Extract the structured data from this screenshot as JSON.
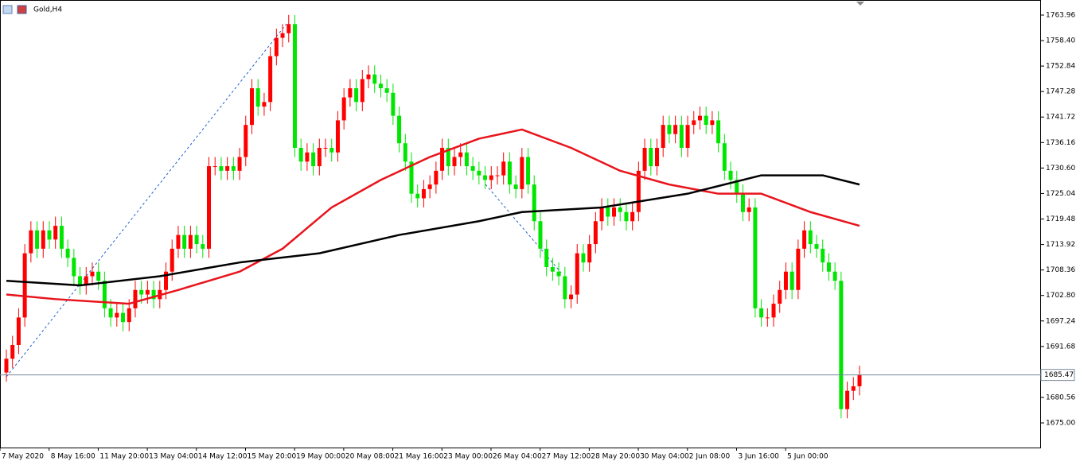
{
  "chart_data": {
    "type": "candlestick",
    "title": "Gold,H4",
    "open": [
      1686,
      1689,
      1692,
      1698,
      1712,
      1717,
      1713,
      1717,
      1715,
      1718,
      1713,
      1711,
      1707,
      1705,
      1707,
      1708,
      1706,
      1700,
      1698,
      1699,
      1697,
      1700,
      1704,
      1703,
      1704,
      1702,
      1704,
      1708,
      1713,
      1716,
      1713,
      1716,
      1714,
      1713,
      1731,
      1731,
      1730,
      1731,
      1730,
      1733,
      1740,
      1748,
      1744,
      1745,
      1755,
      1759,
      1760,
      1762,
      1735,
      1732,
      1734,
      1731,
      1735,
      1735,
      1734,
      1741,
      1746,
      1748,
      1745,
      1750,
      1751,
      1749,
      1748,
      1747,
      1742,
      1736,
      1732,
      1725,
      1724,
      1726,
      1727,
      1730,
      1735,
      1731,
      1733,
      1734,
      1731,
      1730,
      1729,
      1728,
      1729,
      1729,
      1732,
      1727,
      1726,
      1733,
      1727,
      1719,
      1713,
      1709,
      1708,
      1707,
      1702,
      1703,
      1712,
      1710,
      1714,
      1719,
      1722,
      1720,
      1722,
      1721,
      1719,
      1721,
      1730,
      1735,
      1731,
      1735,
      1740,
      1738,
      1740,
      1735,
      1740,
      1741,
      1742,
      1740,
      1741,
      1736,
      1730,
      1728,
      1725,
      1721,
      1722,
      1700,
      1698,
      1698,
      1701,
      1704,
      1708,
      1704,
      1713,
      1717,
      1714,
      1713,
      1710,
      1708,
      1706,
      1678,
      1682,
      1683
    ],
    "high": [
      1691,
      1694,
      1700,
      1714,
      1719,
      1719,
      1719,
      1719,
      1720,
      1720,
      1715,
      1713,
      1709,
      1709,
      1710,
      1710,
      1708,
      1702,
      1701,
      1701,
      1702,
      1706,
      1706,
      1706,
      1706,
      1706,
      1710,
      1715,
      1718,
      1718,
      1718,
      1718,
      1716,
      1733,
      1733,
      1733,
      1733,
      1733,
      1735,
      1742,
      1750,
      1750,
      1747,
      1757,
      1761,
      1762,
      1764,
      1764,
      1737,
      1736,
      1736,
      1737,
      1737,
      1737,
      1743,
      1748,
      1750,
      1750,
      1752,
      1753,
      1753,
      1751,
      1750,
      1749,
      1744,
      1738,
      1734,
      1727,
      1728,
      1729,
      1732,
      1737,
      1737,
      1735,
      1736,
      1736,
      1733,
      1732,
      1731,
      1731,
      1731,
      1734,
      1734,
      1729,
      1735,
      1735,
      1729,
      1721,
      1715,
      1711,
      1710,
      1709,
      1705,
      1714,
      1714,
      1716,
      1721,
      1724,
      1724,
      1724,
      1724,
      1723,
      1723,
      1732,
      1737,
      1737,
      1737,
      1742,
      1742,
      1742,
      1742,
      1742,
      1743,
      1744,
      1744,
      1743,
      1743,
      1738,
      1732,
      1730,
      1727,
      1724,
      1724,
      1702,
      1700,
      1703,
      1706,
      1710,
      1710,
      1715,
      1719,
      1719,
      1716,
      1715,
      1712,
      1710,
      1708,
      1684,
      1685,
      1687.5
    ],
    "low": [
      1684,
      1687,
      1690,
      1696,
      1710,
      1711,
      1711,
      1713,
      1713,
      1711,
      1709,
      1705,
      1703,
      1703,
      1705,
      1704,
      1698,
      1696,
      1696,
      1695,
      1695,
      1698,
      1701,
      1701,
      1700,
      1700,
      1702,
      1706,
      1711,
      1711,
      1711,
      1712,
      1711,
      1711,
      1729,
      1728,
      1728,
      1728,
      1728,
      1731,
      1738,
      1742,
      1742,
      1743,
      1753,
      1757,
      1758,
      1733,
      1730,
      1730,
      1729,
      1729,
      1733,
      1732,
      1732,
      1739,
      1744,
      1743,
      1743,
      1748,
      1747,
      1746,
      1745,
      1740,
      1734,
      1730,
      1723,
      1722,
      1722,
      1724,
      1725,
      1728,
      1729,
      1729,
      1731,
      1729,
      1728,
      1727,
      1726,
      1726,
      1727,
      1727,
      1725,
      1724,
      1724,
      1725,
      1717,
      1711,
      1707,
      1706,
      1705,
      1700,
      1700,
      1701,
      1708,
      1708,
      1712,
      1717,
      1718,
      1718,
      1719,
      1717,
      1717,
      1719,
      1728,
      1729,
      1729,
      1733,
      1736,
      1736,
      1733,
      1733,
      1738,
      1739,
      1738,
      1738,
      1734,
      1728,
      1726,
      1723,
      1719,
      1719,
      1698,
      1696,
      1696,
      1696,
      1699,
      1702,
      1702,
      1702,
      1711,
      1712,
      1711,
      1708,
      1706,
      1704,
      1676,
      1676,
      1680,
      1681
    ],
    "close": [
      1689,
      1692,
      1698,
      1712,
      1717,
      1713,
      1717,
      1715,
      1718,
      1713,
      1711,
      1707,
      1705,
      1707,
      1708,
      1706,
      1700,
      1698,
      1699,
      1697,
      1700,
      1704,
      1703,
      1704,
      1702,
      1704,
      1708,
      1713,
      1716,
      1713,
      1716,
      1714,
      1713,
      1731,
      1731,
      1730,
      1731,
      1730,
      1733,
      1740,
      1748,
      1744,
      1745,
      1755,
      1759,
      1760,
      1762,
      1735,
      1732,
      1734,
      1731,
      1735,
      1735,
      1734,
      1741,
      1746,
      1748,
      1745,
      1750,
      1751,
      1749,
      1748,
      1747,
      1742,
      1736,
      1732,
      1725,
      1724,
      1726,
      1727,
      1730,
      1735,
      1731,
      1733,
      1734,
      1731,
      1730,
      1729,
      1728,
      1729,
      1729,
      1732,
      1727,
      1726,
      1733,
      1727,
      1719,
      1713,
      1709,
      1708,
      1707,
      1702,
      1703,
      1712,
      1710,
      1714,
      1719,
      1722,
      1720,
      1722,
      1721,
      1719,
      1721,
      1730,
      1735,
      1731,
      1735,
      1740,
      1738,
      1740,
      1735,
      1740,
      1741,
      1742,
      1740,
      1741,
      1736,
      1730,
      1728,
      1725,
      1721,
      1722,
      1700,
      1698,
      1698,
      1701,
      1704,
      1708,
      1704,
      1713,
      1717,
      1714,
      1713,
      1710,
      1708,
      1706,
      1678,
      1682,
      1683,
      1685.47
    ],
    "up_color": "#ff0000",
    "down_color": "#00e600",
    "series": [
      {
        "color": "#e8141c",
        "x": [
          0,
          8,
          20,
          28,
          38,
          45,
          53,
          61,
          69,
          77,
          84,
          92,
          100,
          108,
          116,
          123,
          131,
          139
        ],
        "values": [
          1703,
          1702,
          1701,
          1704,
          1708,
          1713,
          1722,
          1728,
          1733,
          1737,
          1739,
          1735,
          1730,
          1727,
          1725,
          1725,
          1721,
          1718
        ]
      },
      {
        "color": "#000000",
        "x": [
          0,
          12,
          25,
          38,
          51,
          64,
          77,
          84,
          97,
          111,
          123,
          133,
          139
        ],
        "values": [
          1706,
          1705,
          1707,
          1710,
          1712,
          1716,
          1719,
          1721,
          1722,
          1725,
          1729,
          1729,
          1727
        ]
      }
    ],
    "ylim": [
      1669.63,
      1767.25
    ],
    "yticks": [
      1763.96,
      {
        "value": 1758.4,
        "label": "1758.40"
      },
      1752.84,
      1747.28,
      1741.72,
      1736.16,
      {
        "value": 1730.6,
        "label": "1730.60"
      },
      1725.04,
      1719.48,
      1713.92,
      1708.36,
      {
        "value": 1702.8,
        "label": "1702.80"
      },
      1697.24,
      1691.68,
      1680.56,
      {
        "value": 1675,
        "label": "1675.00"
      }
    ],
    "xticks": [
      {
        "value": 0,
        "label": "7 May 2020"
      },
      {
        "value": 8,
        "label": "8 May 16:00"
      },
      {
        "value": 16,
        "label": "11 May 20:00"
      },
      {
        "value": 24,
        "label": "13 May 04:00"
      },
      {
        "value": 32,
        "label": "14 May 12:00"
      },
      {
        "value": 40,
        "label": "15 May 20:00"
      },
      {
        "value": 48,
        "label": "19 May 00:00"
      },
      {
        "value": 56,
        "label": "20 May 08:00"
      },
      {
        "value": 64,
        "label": "21 May 16:00"
      },
      {
        "value": 72,
        "label": "23 May 00:00"
      },
      {
        "value": 80,
        "label": "26 May 04:00"
      },
      {
        "value": 88,
        "label": "27 May 12:00"
      },
      {
        "value": 96,
        "label": "28 May 20:00"
      },
      {
        "value": 104,
        "label": "30 May 04:00"
      },
      {
        "value": 112,
        "label": "2 Jun 08:00"
      },
      {
        "value": 120,
        "label": "3 Jun 16:00"
      },
      {
        "value": 128,
        "label": "5 Jun 00:00"
      }
    ]
  }
}
